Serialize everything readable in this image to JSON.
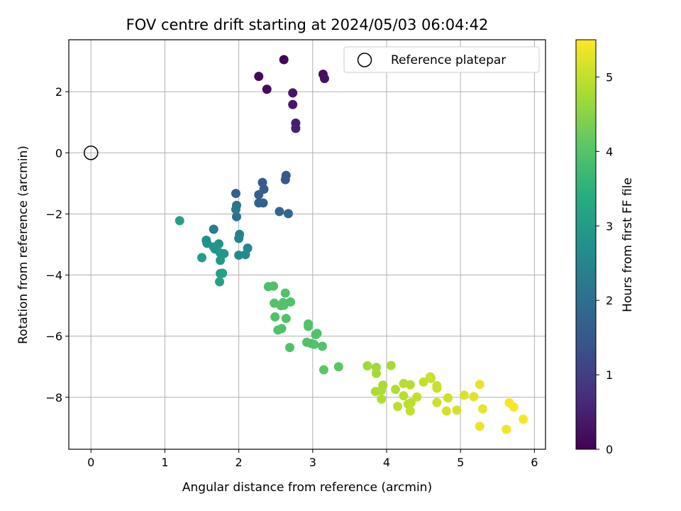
{
  "chart_data": {
    "type": "scatter",
    "title": "FOV centre drift starting at 2024/05/03 06:04:42",
    "xlabel": "Angular distance from reference (arcmin)",
    "ylabel": "Rotation from reference (arcmin)",
    "xlim": [
      -0.3,
      6.15
    ],
    "ylim": [
      -9.7,
      3.7
    ],
    "xticks": [
      0,
      1,
      2,
      3,
      4,
      5,
      6
    ],
    "yticks": [
      -8,
      -6,
      -4,
      -2,
      0,
      2
    ],
    "grid": true,
    "legend": {
      "placement": "top-right",
      "entries": [
        "Reference platepar"
      ]
    },
    "colorbar": {
      "label": "Hours from first FF file",
      "range": [
        0,
        5.5
      ],
      "ticks": [
        0,
        1,
        2,
        3,
        4,
        5
      ],
      "colormap": "viridis"
    },
    "reference_point": {
      "x": 0,
      "y": 0
    },
    "points": [
      {
        "x": 2.61,
        "y": 3.05,
        "c": 0.05
      },
      {
        "x": 2.27,
        "y": 2.5,
        "c": 0.1
      },
      {
        "x": 2.38,
        "y": 2.08,
        "c": 0.15
      },
      {
        "x": 3.14,
        "y": 2.57,
        "c": 0.2
      },
      {
        "x": 3.16,
        "y": 2.43,
        "c": 0.25
      },
      {
        "x": 2.73,
        "y": 1.96,
        "c": 0.3
      },
      {
        "x": 2.73,
        "y": 1.58,
        "c": 0.35
      },
      {
        "x": 2.77,
        "y": 0.97,
        "c": 0.45
      },
      {
        "x": 2.77,
        "y": 0.8,
        "c": 0.5
      },
      {
        "x": 2.64,
        "y": -0.74,
        "c": 1.5
      },
      {
        "x": 2.63,
        "y": -0.88,
        "c": 1.5
      },
      {
        "x": 2.32,
        "y": -0.97,
        "c": 1.55
      },
      {
        "x": 2.34,
        "y": -1.19,
        "c": 1.6
      },
      {
        "x": 1.96,
        "y": -1.33,
        "c": 1.65
      },
      {
        "x": 2.27,
        "y": -1.37,
        "c": 1.7
      },
      {
        "x": 2.27,
        "y": -1.64,
        "c": 1.75
      },
      {
        "x": 2.33,
        "y": -1.64,
        "c": 1.75
      },
      {
        "x": 2.55,
        "y": -1.92,
        "c": 1.8
      },
      {
        "x": 2.67,
        "y": -1.99,
        "c": 1.8
      },
      {
        "x": 1.97,
        "y": -2.09,
        "c": 2.0
      },
      {
        "x": 1.97,
        "y": -1.72,
        "c": 2.1
      },
      {
        "x": 1.96,
        "y": -1.85,
        "c": 2.2
      },
      {
        "x": 1.66,
        "y": -2.5,
        "c": 2.3
      },
      {
        "x": 2.01,
        "y": -2.67,
        "c": 2.4
      },
      {
        "x": 2.0,
        "y": -2.8,
        "c": 2.45
      },
      {
        "x": 2.12,
        "y": -3.12,
        "c": 2.5
      },
      {
        "x": 2.09,
        "y": -3.33,
        "c": 2.55
      },
      {
        "x": 2.0,
        "y": -3.35,
        "c": 2.6
      },
      {
        "x": 1.56,
        "y": -2.86,
        "c": 2.7
      },
      {
        "x": 1.57,
        "y": -2.96,
        "c": 2.75
      },
      {
        "x": 1.66,
        "y": -3.08,
        "c": 2.8
      },
      {
        "x": 1.68,
        "y": -3.15,
        "c": 2.8
      },
      {
        "x": 1.73,
        "y": -2.98,
        "c": 2.85
      },
      {
        "x": 1.8,
        "y": -3.3,
        "c": 2.9
      },
      {
        "x": 1.75,
        "y": -3.28,
        "c": 2.9
      },
      {
        "x": 1.75,
        "y": -3.52,
        "c": 2.95
      },
      {
        "x": 1.5,
        "y": -3.43,
        "c": 3.0
      },
      {
        "x": 1.75,
        "y": -3.95,
        "c": 3.05
      },
      {
        "x": 1.78,
        "y": -3.94,
        "c": 3.1
      },
      {
        "x": 1.74,
        "y": -4.22,
        "c": 3.1
      },
      {
        "x": 1.2,
        "y": -2.22,
        "c": 3.1
      },
      {
        "x": 2.4,
        "y": -4.38,
        "c": 3.9
      },
      {
        "x": 2.47,
        "y": -4.36,
        "c": 3.9
      },
      {
        "x": 2.63,
        "y": -4.59,
        "c": 3.95
      },
      {
        "x": 2.48,
        "y": -4.92,
        "c": 3.95
      },
      {
        "x": 2.6,
        "y": -4.9,
        "c": 3.95
      },
      {
        "x": 2.7,
        "y": -4.88,
        "c": 3.95
      },
      {
        "x": 2.57,
        "y": -5.0,
        "c": 3.95
      },
      {
        "x": 2.61,
        "y": -4.99,
        "c": 3.95
      },
      {
        "x": 2.49,
        "y": -5.37,
        "c": 3.95
      },
      {
        "x": 2.64,
        "y": -5.42,
        "c": 3.95
      },
      {
        "x": 2.53,
        "y": -5.8,
        "c": 3.95
      },
      {
        "x": 2.58,
        "y": -5.75,
        "c": 3.95
      },
      {
        "x": 2.94,
        "y": -5.6,
        "c": 3.95
      },
      {
        "x": 2.94,
        "y": -5.68,
        "c": 3.95
      },
      {
        "x": 3.06,
        "y": -5.91,
        "c": 3.95
      },
      {
        "x": 3.04,
        "y": -5.95,
        "c": 3.95
      },
      {
        "x": 2.92,
        "y": -6.2,
        "c": 3.95
      },
      {
        "x": 2.98,
        "y": -6.24,
        "c": 3.95
      },
      {
        "x": 3.02,
        "y": -6.27,
        "c": 3.95
      },
      {
        "x": 2.69,
        "y": -6.37,
        "c": 3.95
      },
      {
        "x": 3.13,
        "y": -6.33,
        "c": 3.95
      },
      {
        "x": 3.15,
        "y": -7.1,
        "c": 4.05
      },
      {
        "x": 3.35,
        "y": -7.0,
        "c": 4.05
      },
      {
        "x": 3.74,
        "y": -6.97,
        "c": 4.7
      },
      {
        "x": 3.86,
        "y": -7.02,
        "c": 4.7
      },
      {
        "x": 3.86,
        "y": -7.22,
        "c": 4.75
      },
      {
        "x": 4.06,
        "y": -6.96,
        "c": 4.75
      },
      {
        "x": 3.85,
        "y": -7.81,
        "c": 4.8
      },
      {
        "x": 3.93,
        "y": -7.77,
        "c": 4.8
      },
      {
        "x": 3.95,
        "y": -7.6,
        "c": 4.8
      },
      {
        "x": 3.93,
        "y": -8.06,
        "c": 4.85
      },
      {
        "x": 4.12,
        "y": -7.74,
        "c": 4.85
      },
      {
        "x": 4.23,
        "y": -7.55,
        "c": 4.9
      },
      {
        "x": 4.32,
        "y": -7.59,
        "c": 4.9
      },
      {
        "x": 4.23,
        "y": -7.95,
        "c": 4.9
      },
      {
        "x": 4.33,
        "y": -8.18,
        "c": 4.95
      },
      {
        "x": 4.29,
        "y": -8.22,
        "c": 4.95
      },
      {
        "x": 4.15,
        "y": -8.3,
        "c": 4.95
      },
      {
        "x": 4.32,
        "y": -8.45,
        "c": 5.0
      },
      {
        "x": 4.41,
        "y": -7.99,
        "c": 5.0
      },
      {
        "x": 4.5,
        "y": -7.5,
        "c": 5.0
      },
      {
        "x": 4.59,
        "y": -7.33,
        "c": 5.05
      },
      {
        "x": 4.6,
        "y": -7.38,
        "c": 5.05
      },
      {
        "x": 4.68,
        "y": -7.62,
        "c": 5.05
      },
      {
        "x": 4.68,
        "y": -7.7,
        "c": 5.05
      },
      {
        "x": 4.68,
        "y": -8.17,
        "c": 5.1
      },
      {
        "x": 4.83,
        "y": -8.02,
        "c": 5.1
      },
      {
        "x": 4.81,
        "y": -8.45,
        "c": 5.15
      },
      {
        "x": 4.95,
        "y": -8.42,
        "c": 5.15
      },
      {
        "x": 5.05,
        "y": -7.93,
        "c": 5.2
      },
      {
        "x": 5.18,
        "y": -7.98,
        "c": 5.25
      },
      {
        "x": 5.26,
        "y": -7.58,
        "c": 5.3
      },
      {
        "x": 5.3,
        "y": -8.38,
        "c": 5.3
      },
      {
        "x": 5.26,
        "y": -8.95,
        "c": 5.35
      },
      {
        "x": 5.62,
        "y": -9.05,
        "c": 5.4
      },
      {
        "x": 5.66,
        "y": -8.18,
        "c": 5.45
      },
      {
        "x": 5.72,
        "y": -8.32,
        "c": 5.45
      },
      {
        "x": 5.85,
        "y": -8.72,
        "c": 5.45
      }
    ]
  }
}
